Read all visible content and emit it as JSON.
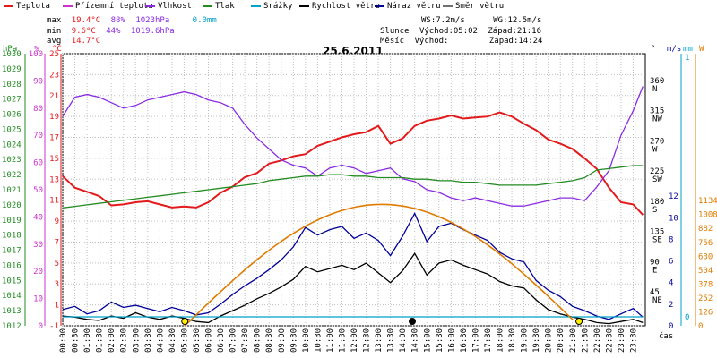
{
  "legend": [
    {
      "label": "Teplota",
      "color": "#e31a1c"
    },
    {
      "label": "Přízemní teplota",
      "color": "#cc33cc"
    },
    {
      "label": "Vlhkost",
      "color": "#8a2be2"
    },
    {
      "label": "Tlak",
      "color": "#228b22"
    },
    {
      "label": "Srážky",
      "color": "#00a0c8"
    },
    {
      "label": "Rychlost větru",
      "color": "#000000"
    },
    {
      "label": "Náraz větru",
      "color": "#000099"
    },
    {
      "label": "Směr větru",
      "color": "#707070"
    }
  ],
  "stats": {
    "max": {
      "label": "max",
      "temp": "19.4°C",
      "hum": "88%",
      "pres": "1023hPa",
      "rain": "0.0mm"
    },
    "min": {
      "label": "min",
      "temp": "9.6°C",
      "hum": "44%",
      "pres": "1019.6hPa"
    },
    "avg": {
      "label": "avg",
      "temp": "14.7°C"
    }
  },
  "wind_info": {
    "ws": "WS:7.2m/s",
    "wg": "WG:12.5m/s",
    "sun_label": "Slunce",
    "sun_rise": "Východ:05:02",
    "sun_set": "Západ:21:16",
    "moon_label": "Měsíc",
    "moon_rise": "Východ:",
    "moon_set": "Západ:14:24"
  },
  "chart_data": {
    "type": "line",
    "title": "25.6.2011",
    "xlabel": "čas",
    "x_ticks": [
      "00:00",
      "00:30",
      "01:00",
      "01:30",
      "02:00",
      "02:30",
      "03:00",
      "03:30",
      "04:00",
      "04:30",
      "05:00",
      "05:30",
      "06:00",
      "06:30",
      "07:00",
      "07:30",
      "08:00",
      "08:30",
      "09:00",
      "09:30",
      "10:00",
      "10:30",
      "11:00",
      "11:30",
      "12:00",
      "12:30",
      "13:00",
      "13:30",
      "14:00",
      "14:30",
      "15:00",
      "15:30",
      "16:00",
      "16:30",
      "17:00",
      "17:30",
      "18:00",
      "18:30",
      "19:00",
      "19:30",
      "20:00",
      "20:30",
      "21:00",
      "21:30",
      "22:00",
      "22:30",
      "23:00",
      "23:30"
    ],
    "axes": {
      "hpa": {
        "label": "hPa",
        "min": 1012,
        "max": 1030,
        "ticks": [
          "1030",
          "1029",
          "1028",
          "1027",
          "1026",
          "1025",
          "1024",
          "1023",
          "1022",
          "1021",
          "1020",
          "1019",
          "1018",
          "1017",
          "1016",
          "1015",
          "1014",
          "1013",
          "1012"
        ]
      },
      "percent": {
        "label": "%",
        "min": 0,
        "max": 100,
        "ticks": [
          "100",
          "90",
          "80",
          "70",
          "60",
          "50",
          "40",
          "30",
          "20",
          "10",
          "0"
        ]
      },
      "celsius": {
        "label": "°C",
        "min": -1,
        "max": 25,
        "ticks": [
          "25",
          "23",
          "21",
          "19",
          "17",
          "15",
          "13",
          "11",
          "9",
          "7",
          "5",
          "3",
          "1",
          "-1"
        ]
      },
      "direction": {
        "label": "°",
        "ticks": [
          {
            "v": "360",
            "c": "N"
          },
          {
            "v": "315",
            "c": "NW"
          },
          {
            "v": "270",
            "c": "W"
          },
          {
            "v": "225",
            "c": "SW"
          },
          {
            "v": "180",
            "c": "S"
          },
          {
            "v": "135",
            "c": "SE"
          },
          {
            "v": "90",
            "c": "E"
          },
          {
            "v": "45",
            "c": "NE"
          }
        ]
      },
      "ms": {
        "label": "m/s",
        "min": 0,
        "max": 12,
        "ticks": [
          "12",
          "10",
          "8",
          "6",
          "4",
          "2",
          "0"
        ]
      },
      "mm": {
        "label": "mm",
        "min": 0,
        "max": 1,
        "ticks": [
          "1",
          "0"
        ]
      },
      "wm2": {
        "label": "W",
        "min": 0,
        "max": 1134,
        "ticks": [
          "1134",
          "1008",
          "882",
          "756",
          "630",
          "504",
          "378",
          "252",
          "126",
          "0"
        ]
      }
    },
    "series": [
      {
        "name": "Teplota",
        "unit": "°C",
        "color": "#e31a1c",
        "x": [
          0,
          0.5,
          1,
          1.5,
          2,
          2.5,
          3,
          3.5,
          4,
          4.5,
          5,
          5.5,
          6,
          6.5,
          7,
          7.5,
          8,
          8.5,
          9,
          9.5,
          10,
          10.5,
          11,
          11.5,
          12,
          12.5,
          13,
          13.5,
          14,
          14.5,
          15,
          15.5,
          16,
          16.5,
          17,
          17.5,
          18,
          18.5,
          19,
          19.5,
          20,
          20.5,
          21,
          21.5,
          22,
          22.5,
          23,
          23.5,
          23.9
        ],
        "y": [
          13.3,
          12.2,
          11.8,
          11.4,
          10.5,
          10.6,
          10.8,
          10.9,
          10.6,
          10.3,
          10.4,
          10.3,
          10.8,
          11.7,
          12.3,
          13.2,
          13.6,
          14.5,
          14.8,
          15.2,
          15.4,
          16.2,
          16.6,
          17.0,
          17.3,
          17.5,
          18.1,
          16.4,
          16.9,
          18.1,
          18.6,
          18.8,
          19.1,
          18.8,
          18.9,
          19.0,
          19.4,
          19.0,
          18.3,
          17.7,
          16.8,
          16.4,
          15.9,
          15.0,
          14.0,
          12.2,
          10.8,
          10.6,
          9.6
        ]
      },
      {
        "name": "Vlhkost",
        "unit": "%",
        "color": "#8a2be2",
        "x": [
          0,
          0.5,
          1,
          1.5,
          2,
          2.5,
          3,
          3.5,
          4,
          4.5,
          5,
          5.5,
          6,
          6.5,
          7,
          7.5,
          8,
          8.5,
          9,
          9.5,
          10,
          10.5,
          11,
          11.5,
          12,
          12.5,
          13,
          13.5,
          14,
          14.5,
          15,
          15.5,
          16,
          16.5,
          17,
          17.5,
          18,
          18.5,
          19,
          19.5,
          20,
          20.5,
          21,
          21.5,
          22,
          22.5,
          23,
          23.5,
          23.9
        ],
        "y": [
          77,
          84,
          85,
          84,
          82,
          80,
          81,
          83,
          84,
          85,
          86,
          85,
          83,
          82,
          80,
          74,
          69,
          65,
          61,
          59,
          58,
          55,
          58,
          59,
          58,
          56,
          57,
          58,
          54,
          53,
          50,
          49,
          47,
          46,
          47,
          46,
          45,
          44,
          44,
          45,
          46,
          47,
          47,
          46,
          51,
          57,
          70,
          79,
          88
        ]
      },
      {
        "name": "Tlak",
        "unit": "hPa",
        "color": "#228b22",
        "x": [
          0,
          0.5,
          1,
          1.5,
          2,
          2.5,
          3,
          3.5,
          4,
          4.5,
          5,
          5.5,
          6,
          6.5,
          7,
          7.5,
          8,
          8.5,
          9,
          9.5,
          10,
          10.5,
          11,
          11.5,
          12,
          12.5,
          13,
          13.5,
          14,
          14.5,
          15,
          15.5,
          16,
          16.5,
          17,
          17.5,
          18,
          18.5,
          19,
          19.5,
          20,
          20.5,
          21,
          21.5,
          22,
          22.5,
          23,
          23.5,
          23.9
        ],
        "y": [
          1019.8,
          1019.9,
          1020.0,
          1020.1,
          1020.2,
          1020.3,
          1020.4,
          1020.5,
          1020.6,
          1020.7,
          1020.8,
          1020.9,
          1021.0,
          1021.1,
          1021.2,
          1021.3,
          1021.4,
          1021.6,
          1021.7,
          1021.8,
          1021.9,
          1021.9,
          1022.0,
          1022.0,
          1021.9,
          1021.9,
          1021.8,
          1021.8,
          1021.8,
          1021.7,
          1021.7,
          1021.6,
          1021.6,
          1021.5,
          1021.5,
          1021.4,
          1021.3,
          1021.3,
          1021.3,
          1021.3,
          1021.4,
          1021.5,
          1021.6,
          1021.8,
          1022.3,
          1022.4,
          1022.5,
          1022.6,
          1022.6
        ]
      },
      {
        "name": "Rychlost větru",
        "unit": "m/s",
        "color": "#000000",
        "x": [
          0,
          0.5,
          1,
          1.5,
          2,
          2.5,
          3,
          3.5,
          4,
          4.5,
          5,
          5.5,
          6,
          6.5,
          7,
          7.5,
          8,
          8.5,
          9,
          9.5,
          10,
          10.5,
          11,
          11.5,
          12,
          12.5,
          13,
          13.5,
          14,
          14.5,
          15,
          15.5,
          16,
          16.5,
          17,
          17.5,
          18,
          18.5,
          19,
          19.5,
          20,
          20.5,
          21,
          21.5,
          22,
          22.5,
          23,
          23.5,
          23.9
        ],
        "y": [
          0.9,
          0.8,
          0.6,
          0.5,
          0.9,
          0.7,
          1.2,
          0.8,
          0.6,
          0.9,
          0.7,
          0.4,
          0.3,
          0.9,
          1.4,
          1.9,
          2.5,
          3.0,
          3.6,
          4.3,
          5.5,
          5.0,
          5.3,
          5.6,
          5.2,
          5.8,
          4.9,
          4.0,
          5.1,
          6.7,
          4.7,
          5.8,
          6.1,
          5.6,
          5.2,
          4.8,
          4.1,
          3.7,
          3.5,
          2.4,
          1.5,
          1.1,
          0.8,
          0.6,
          0.3,
          0.2,
          0.4,
          0.6,
          0.3
        ]
      },
      {
        "name": "Náraz větru",
        "unit": "m/s",
        "color": "#000099",
        "x": [
          0,
          0.5,
          1,
          1.5,
          2,
          2.5,
          3,
          3.5,
          4,
          4.5,
          5,
          5.5,
          6,
          6.5,
          7,
          7.5,
          8,
          8.5,
          9,
          9.5,
          10,
          10.5,
          11,
          11.5,
          12,
          12.5,
          13,
          13.5,
          14,
          14.5,
          15,
          15.5,
          16,
          16.5,
          17,
          17.5,
          18,
          18.5,
          19,
          19.5,
          20,
          20.5,
          21,
          21.5,
          22,
          22.5,
          23,
          23.5,
          23.9
        ],
        "y": [
          1.5,
          1.8,
          1.1,
          1.4,
          2.2,
          1.7,
          1.9,
          1.6,
          1.3,
          1.7,
          1.4,
          1.0,
          1.2,
          2.0,
          2.9,
          3.7,
          4.4,
          5.2,
          6.1,
          7.3,
          9.1,
          8.4,
          8.9,
          9.2,
          8.1,
          8.6,
          7.9,
          6.5,
          8.3,
          10.4,
          7.8,
          9.2,
          9.5,
          8.9,
          8.4,
          7.9,
          6.8,
          6.2,
          5.9,
          4.2,
          3.3,
          2.7,
          1.8,
          1.4,
          0.9,
          0.6,
          1.1,
          1.6,
          0.8
        ]
      },
      {
        "name": "Srážky",
        "unit": "mm",
        "color": "#00a0c8",
        "x": [
          0,
          23.9
        ],
        "y": [
          0,
          0
        ]
      }
    ],
    "solar": {
      "unit": "W",
      "color": "#e07b00",
      "sunrise_h": 5.03,
      "sunset_h": 21.27,
      "peak": 1100
    }
  }
}
